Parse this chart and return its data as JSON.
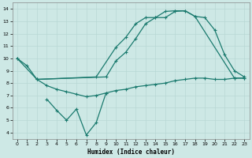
{
  "xlabel": "Humidex (Indice chaleur)",
  "bg_color": "#cde8e5",
  "line_color": "#1a7a6e",
  "grid_color": "#b8d8d4",
  "xlim": [
    -0.5,
    23.5
  ],
  "ylim": [
    3.5,
    14.5
  ],
  "xticks": [
    0,
    1,
    2,
    3,
    4,
    5,
    6,
    7,
    8,
    9,
    10,
    11,
    12,
    13,
    14,
    15,
    16,
    17,
    18,
    19,
    20,
    21,
    22,
    23
  ],
  "yticks": [
    4,
    5,
    6,
    7,
    8,
    9,
    10,
    11,
    12,
    13,
    14
  ],
  "line1_x": [
    0,
    1,
    2,
    8,
    10,
    11,
    12,
    13,
    14,
    15,
    16,
    17,
    18,
    19,
    20,
    21,
    22,
    23
  ],
  "line1_y": [
    10.0,
    9.4,
    8.3,
    8.5,
    10.9,
    11.7,
    12.8,
    13.3,
    13.3,
    13.8,
    13.85,
    13.85,
    13.4,
    13.3,
    12.3,
    10.3,
    9.0,
    8.5
  ],
  "line2_x": [
    0,
    2,
    9,
    10,
    11,
    12,
    13,
    14,
    15,
    16,
    17,
    18,
    22,
    23
  ],
  "line2_y": [
    10.0,
    8.3,
    8.5,
    9.8,
    10.5,
    11.6,
    12.8,
    13.3,
    13.3,
    13.8,
    13.85,
    13.4,
    8.4,
    8.4
  ],
  "line3_x": [
    3,
    4,
    5,
    6,
    7,
    8,
    9
  ],
  "line3_y": [
    6.7,
    5.8,
    5.0,
    5.9,
    3.8,
    4.8,
    7.2
  ],
  "line4_x": [
    2,
    3,
    4,
    5,
    6,
    7,
    8,
    9,
    10,
    11,
    12,
    13,
    14,
    15,
    16,
    17,
    18,
    19,
    20,
    21,
    22,
    23
  ],
  "line4_y": [
    8.3,
    7.8,
    7.5,
    7.3,
    7.1,
    6.9,
    7.0,
    7.2,
    7.4,
    7.5,
    7.7,
    7.8,
    7.9,
    8.0,
    8.2,
    8.3,
    8.4,
    8.4,
    8.3,
    8.3,
    8.4,
    8.4
  ]
}
